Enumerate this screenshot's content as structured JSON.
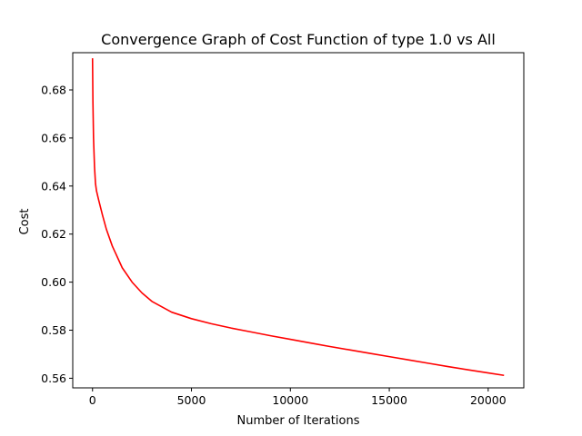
{
  "chart_data": {
    "type": "line",
    "title": "Convergence Graph of Cost Function of type 1.0 vs All",
    "xlabel": "Number of Iterations",
    "ylabel": "Cost",
    "xlim": [
      -1000,
      21800
    ],
    "ylim": [
      0.556,
      0.6955
    ],
    "xticks": [
      0,
      5000,
      10000,
      15000,
      20000
    ],
    "xtick_labels": [
      "0",
      "5000",
      "10000",
      "15000",
      "20000"
    ],
    "yticks": [
      0.56,
      0.58,
      0.6,
      0.62,
      0.64,
      0.66,
      0.68
    ],
    "ytick_labels": [
      "0.56",
      "0.58",
      "0.60",
      "0.62",
      "0.64",
      "0.66",
      "0.68"
    ],
    "grid": false,
    "series": [
      {
        "color": "#ff0000",
        "x": [
          0,
          20,
          50,
          100,
          150,
          200,
          300,
          500,
          700,
          1000,
          1500,
          2000,
          2500,
          3000,
          4000,
          5000,
          6000,
          7000,
          8000,
          9000,
          10000,
          11000,
          12000,
          13000,
          14000,
          15000,
          16000,
          17000,
          18000,
          19000,
          20000,
          20800
        ],
        "y": [
          0.6932,
          0.675,
          0.66,
          0.648,
          0.641,
          0.638,
          0.6345,
          0.628,
          0.622,
          0.615,
          0.606,
          0.6,
          0.5955,
          0.592,
          0.5875,
          0.5848,
          0.5827,
          0.5809,
          0.5793,
          0.5777,
          0.5762,
          0.5747,
          0.5732,
          0.5718,
          0.5704,
          0.569,
          0.5676,
          0.5662,
          0.5648,
          0.5635,
          0.5622,
          0.5612
        ]
      }
    ]
  }
}
